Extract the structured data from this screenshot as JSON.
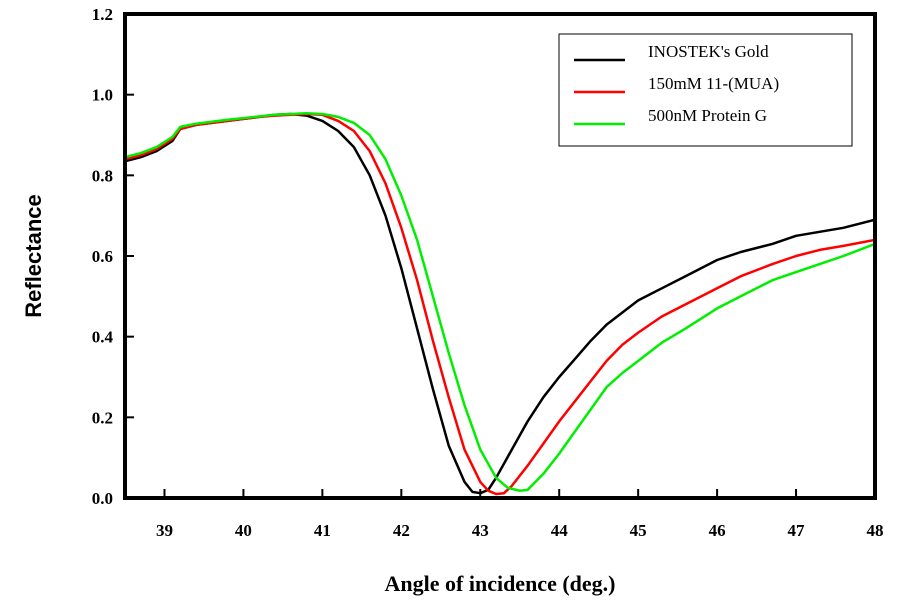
{
  "chart_data": {
    "type": "line",
    "xlabel": "Angle of incidence (deg.)",
    "ylabel": "Reflectance",
    "xlim": [
      38.5,
      48
    ],
    "ylim": [
      0.0,
      1.2
    ],
    "x_ticks": [
      "39",
      "40",
      "41",
      "42",
      "43",
      "44",
      "45",
      "46",
      "47",
      "48"
    ],
    "y_ticks": [
      "0.0",
      "0.2",
      "0.4",
      "0.6",
      "0.8",
      "1.0",
      "1.2"
    ],
    "grid": false,
    "legend_position": "top-right",
    "series": [
      {
        "name": "INOSTEK's Gold",
        "color": "#000000",
        "points": [
          [
            38.5,
            0.835
          ],
          [
            38.7,
            0.845
          ],
          [
            38.9,
            0.86
          ],
          [
            39.1,
            0.885
          ],
          [
            39.2,
            0.915
          ],
          [
            39.4,
            0.925
          ],
          [
            39.6,
            0.93
          ],
          [
            39.8,
            0.935
          ],
          [
            40.0,
            0.94
          ],
          [
            40.2,
            0.945
          ],
          [
            40.4,
            0.95
          ],
          [
            40.6,
            0.952
          ],
          [
            40.8,
            0.948
          ],
          [
            41.0,
            0.935
          ],
          [
            41.2,
            0.91
          ],
          [
            41.4,
            0.87
          ],
          [
            41.6,
            0.8
          ],
          [
            41.8,
            0.7
          ],
          [
            42.0,
            0.57
          ],
          [
            42.2,
            0.42
          ],
          [
            42.4,
            0.27
          ],
          [
            42.6,
            0.13
          ],
          [
            42.8,
            0.04
          ],
          [
            42.9,
            0.015
          ],
          [
            43.0,
            0.012
          ],
          [
            43.1,
            0.02
          ],
          [
            43.2,
            0.05
          ],
          [
            43.4,
            0.12
          ],
          [
            43.6,
            0.19
          ],
          [
            43.8,
            0.25
          ],
          [
            44.0,
            0.3
          ],
          [
            44.2,
            0.345
          ],
          [
            44.4,
            0.39
          ],
          [
            44.6,
            0.43
          ],
          [
            44.8,
            0.46
          ],
          [
            45.0,
            0.49
          ],
          [
            45.3,
            0.52
          ],
          [
            45.6,
            0.55
          ],
          [
            46.0,
            0.59
          ],
          [
            46.3,
            0.61
          ],
          [
            46.7,
            0.63
          ],
          [
            47.0,
            0.65
          ],
          [
            47.3,
            0.66
          ],
          [
            47.6,
            0.67
          ],
          [
            48.0,
            0.69
          ]
        ]
      },
      {
        "name": "150mM 11-(MUA)",
        "color": "#ff0000",
        "points": [
          [
            38.5,
            0.84
          ],
          [
            38.7,
            0.85
          ],
          [
            38.9,
            0.865
          ],
          [
            39.1,
            0.89
          ],
          [
            39.2,
            0.915
          ],
          [
            39.4,
            0.925
          ],
          [
            39.6,
            0.93
          ],
          [
            39.8,
            0.935
          ],
          [
            40.0,
            0.94
          ],
          [
            40.2,
            0.945
          ],
          [
            40.4,
            0.948
          ],
          [
            40.6,
            0.95
          ],
          [
            40.8,
            0.952
          ],
          [
            41.0,
            0.95
          ],
          [
            41.2,
            0.935
          ],
          [
            41.4,
            0.91
          ],
          [
            41.6,
            0.86
          ],
          [
            41.8,
            0.78
          ],
          [
            42.0,
            0.67
          ],
          [
            42.2,
            0.54
          ],
          [
            42.4,
            0.39
          ],
          [
            42.6,
            0.25
          ],
          [
            42.8,
            0.12
          ],
          [
            43.0,
            0.04
          ],
          [
            43.1,
            0.018
          ],
          [
            43.2,
            0.01
          ],
          [
            43.3,
            0.012
          ],
          [
            43.4,
            0.03
          ],
          [
            43.6,
            0.08
          ],
          [
            43.8,
            0.135
          ],
          [
            44.0,
            0.19
          ],
          [
            44.2,
            0.24
          ],
          [
            44.4,
            0.29
          ],
          [
            44.6,
            0.34
          ],
          [
            44.8,
            0.38
          ],
          [
            45.0,
            0.41
          ],
          [
            45.3,
            0.45
          ],
          [
            45.6,
            0.48
          ],
          [
            46.0,
            0.52
          ],
          [
            46.3,
            0.55
          ],
          [
            46.7,
            0.58
          ],
          [
            47.0,
            0.6
          ],
          [
            47.3,
            0.615
          ],
          [
            47.6,
            0.625
          ],
          [
            48.0,
            0.64
          ]
        ]
      },
      {
        "name": "500nM Protein G",
        "color": "#00ee00",
        "points": [
          [
            38.5,
            0.845
          ],
          [
            38.7,
            0.855
          ],
          [
            38.9,
            0.87
          ],
          [
            39.1,
            0.895
          ],
          [
            39.2,
            0.92
          ],
          [
            39.4,
            0.928
          ],
          [
            39.6,
            0.933
          ],
          [
            39.8,
            0.938
          ],
          [
            40.0,
            0.942
          ],
          [
            40.2,
            0.946
          ],
          [
            40.4,
            0.95
          ],
          [
            40.6,
            0.952
          ],
          [
            40.8,
            0.954
          ],
          [
            41.0,
            0.952
          ],
          [
            41.2,
            0.945
          ],
          [
            41.4,
            0.93
          ],
          [
            41.6,
            0.9
          ],
          [
            41.8,
            0.84
          ],
          [
            42.0,
            0.75
          ],
          [
            42.2,
            0.64
          ],
          [
            42.4,
            0.5
          ],
          [
            42.6,
            0.36
          ],
          [
            42.8,
            0.23
          ],
          [
            43.0,
            0.12
          ],
          [
            43.2,
            0.05
          ],
          [
            43.35,
            0.025
          ],
          [
            43.5,
            0.018
          ],
          [
            43.6,
            0.02
          ],
          [
            43.8,
            0.06
          ],
          [
            44.0,
            0.11
          ],
          [
            44.2,
            0.165
          ],
          [
            44.4,
            0.22
          ],
          [
            44.6,
            0.275
          ],
          [
            44.8,
            0.31
          ],
          [
            45.0,
            0.34
          ],
          [
            45.3,
            0.385
          ],
          [
            45.6,
            0.42
          ],
          [
            46.0,
            0.47
          ],
          [
            46.3,
            0.5
          ],
          [
            46.7,
            0.54
          ],
          [
            47.0,
            0.56
          ],
          [
            47.3,
            0.58
          ],
          [
            47.6,
            0.6
          ],
          [
            48.0,
            0.63
          ]
        ]
      }
    ]
  }
}
